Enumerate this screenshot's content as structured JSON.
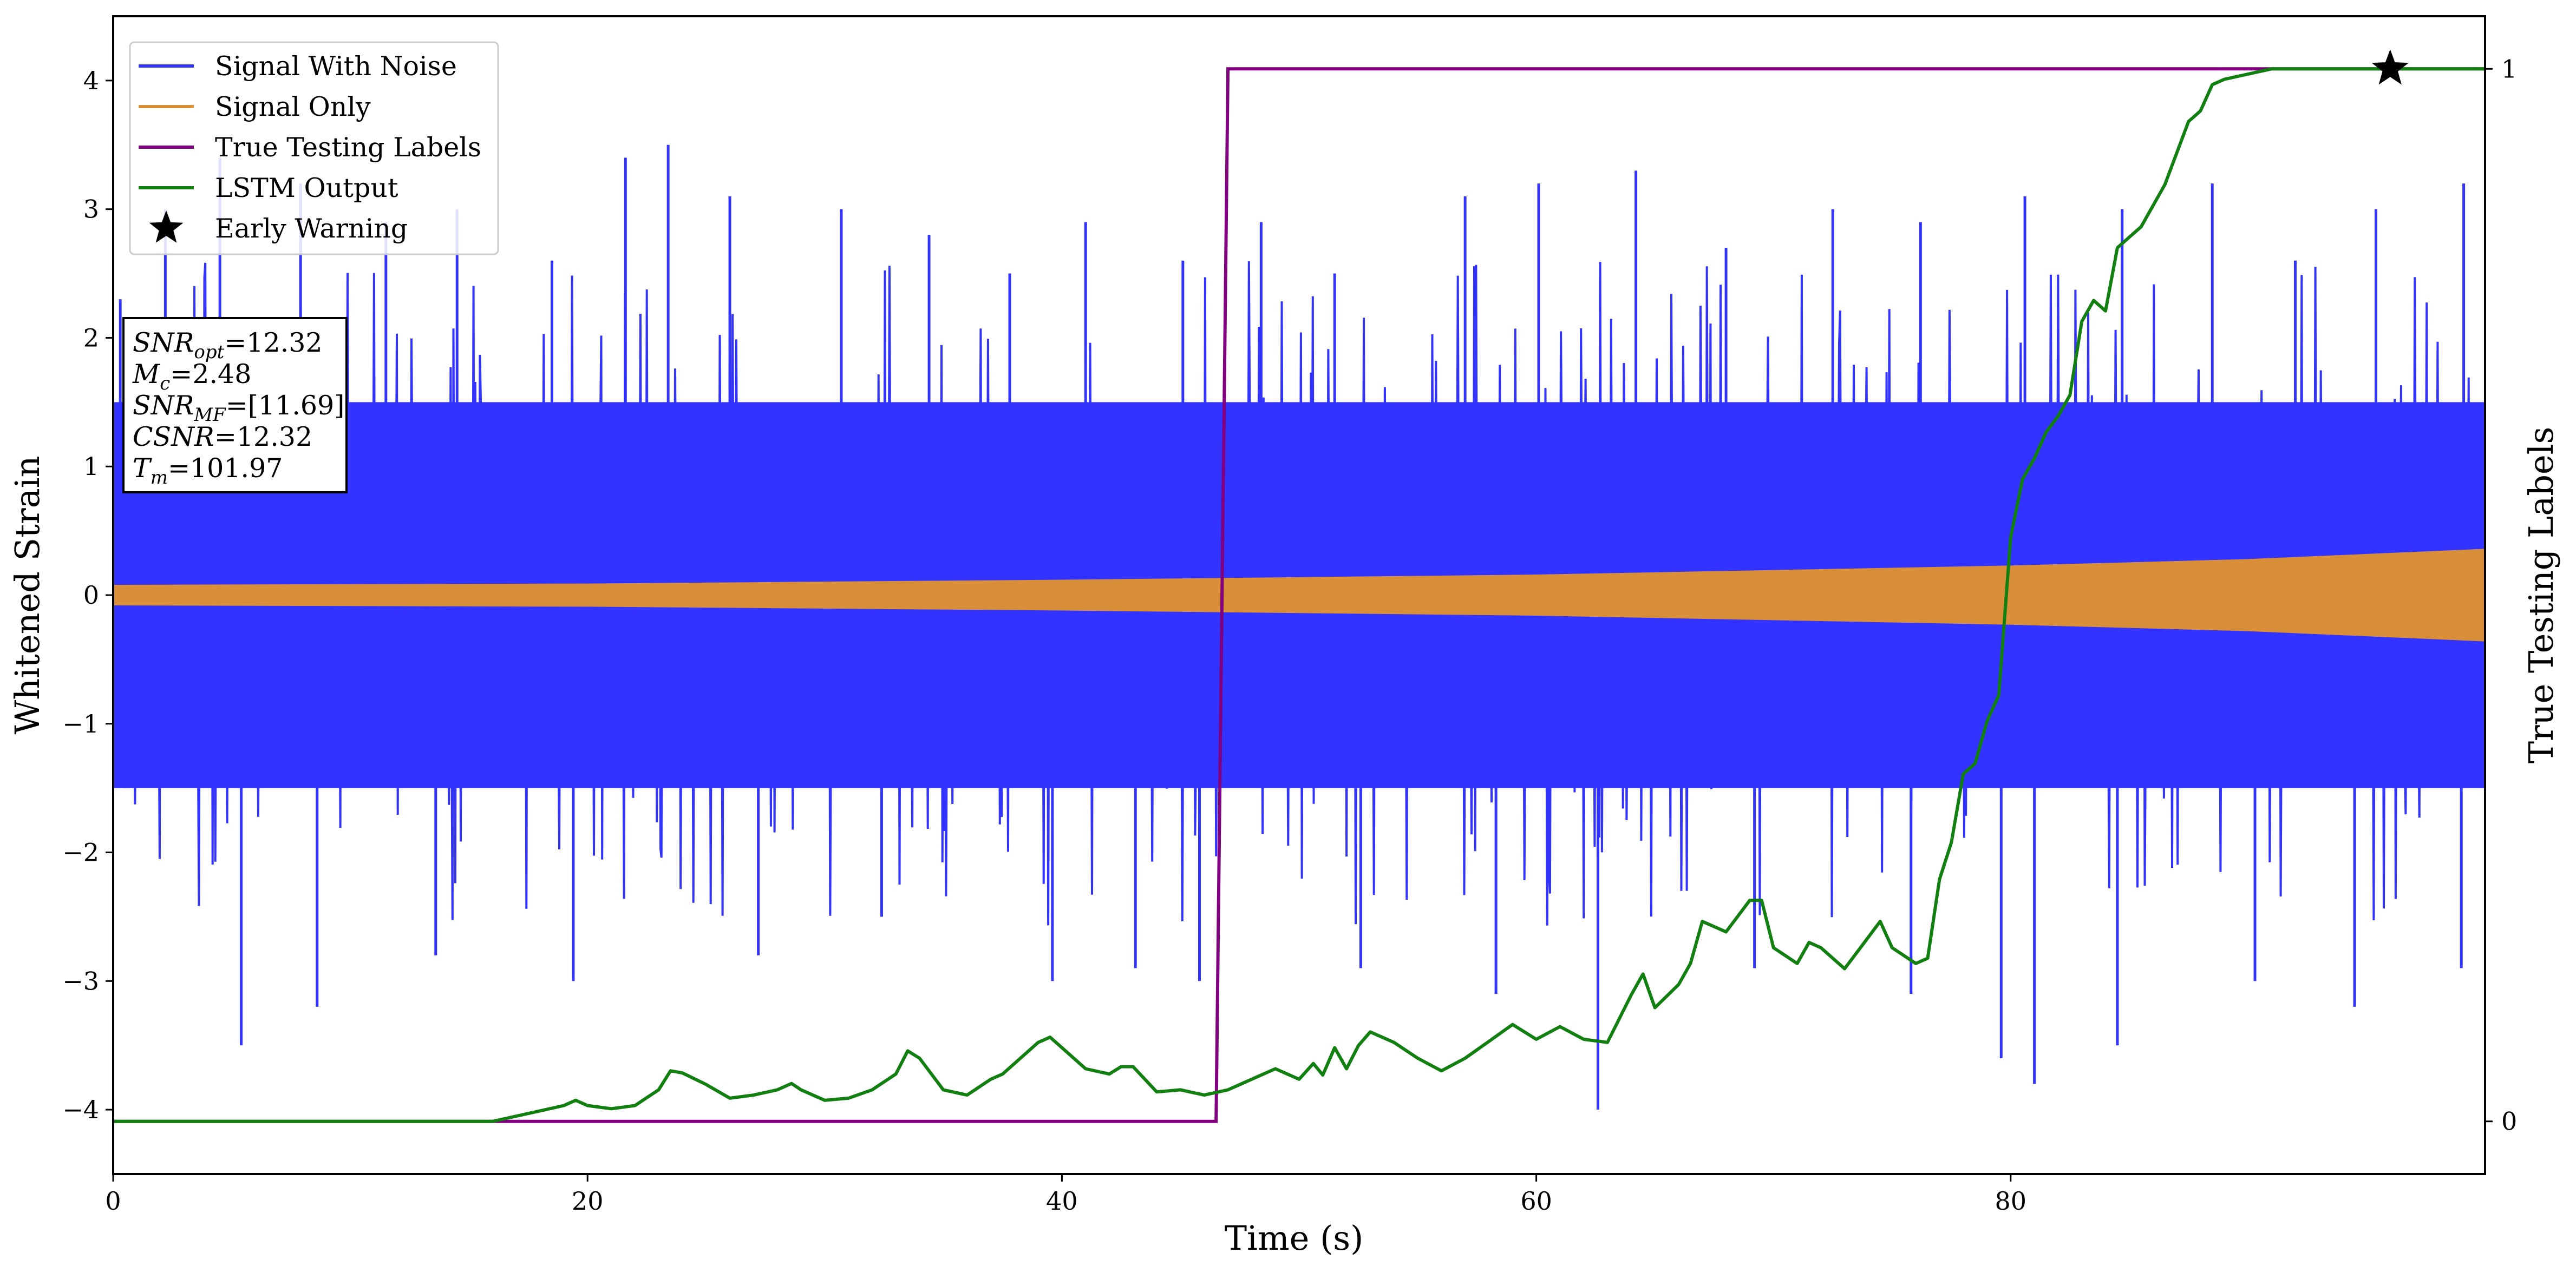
{
  "chart_data": {
    "type": "line",
    "xlabel": "Time (s)",
    "ylabel": "Whitened Strain",
    "y2label": "True Testing Labels",
    "xlim": [
      0,
      100
    ],
    "ylim": [
      -4.5,
      4.5
    ],
    "y2lim": [
      -0.05,
      1.05
    ],
    "xticks": [
      0,
      20,
      40,
      60,
      80
    ],
    "yticks": [
      -4,
      -3,
      -2,
      -1,
      0,
      1,
      2,
      3,
      4
    ],
    "y2ticks": [
      0,
      1
    ],
    "grid": false,
    "legend_position": "top-left",
    "series": [
      {
        "name": "Signal With Noise",
        "color": "#3333ff",
        "axis": "left",
        "description_range": [
          -4.1,
          4.1
        ],
        "envelope_typical": [
          -1.5,
          1.5
        ],
        "spikes_high": [
          [
            0.3,
            2.3
          ],
          [
            2.2,
            3.0
          ],
          [
            4.5,
            3.4
          ],
          [
            7.9,
            3.2
          ],
          [
            11.5,
            2.9
          ],
          [
            14.5,
            3.0
          ],
          [
            18.5,
            2.6
          ],
          [
            21.6,
            3.4
          ],
          [
            23.4,
            3.5
          ],
          [
            26.0,
            3.1
          ],
          [
            30.7,
            3.0
          ],
          [
            34.4,
            2.8
          ],
          [
            37.8,
            2.5
          ],
          [
            41.0,
            2.9
          ],
          [
            45.1,
            2.6
          ],
          [
            48.4,
            2.9
          ],
          [
            51.5,
            2.5
          ],
          [
            57.0,
            3.1
          ],
          [
            60.1,
            3.2
          ],
          [
            64.2,
            3.3
          ],
          [
            68.0,
            2.7
          ],
          [
            72.5,
            3.0
          ],
          [
            76.2,
            2.9
          ],
          [
            80.6,
            3.1
          ],
          [
            84.7,
            3.0
          ],
          [
            88.5,
            3.2
          ],
          [
            92.0,
            2.6
          ],
          [
            95.4,
            3.0
          ],
          [
            99.1,
            3.2
          ]
        ],
        "spikes_low": [
          [
            0.5,
            -1.5
          ],
          [
            5.4,
            -3.5
          ],
          [
            8.6,
            -3.2
          ],
          [
            13.6,
            -2.8
          ],
          [
            19.4,
            -3.0
          ],
          [
            27.2,
            -2.8
          ],
          [
            32.4,
            -2.5
          ],
          [
            39.6,
            -3.0
          ],
          [
            43.1,
            -2.9
          ],
          [
            45.8,
            -3.0
          ],
          [
            52.6,
            -2.9
          ],
          [
            58.3,
            -3.1
          ],
          [
            62.6,
            -4.0
          ],
          [
            69.2,
            -2.9
          ],
          [
            75.8,
            -3.1
          ],
          [
            79.6,
            -3.6
          ],
          [
            81.0,
            -3.8
          ],
          [
            84.5,
            -3.5
          ],
          [
            90.3,
            -3.0
          ],
          [
            94.5,
            -3.2
          ],
          [
            99.0,
            -2.9
          ]
        ]
      },
      {
        "name": "Signal Only",
        "color": "#d98e3a",
        "axis": "left",
        "amplitude_envelope": [
          [
            0,
            0.08
          ],
          [
            20,
            0.09
          ],
          [
            40,
            0.12
          ],
          [
            60,
            0.16
          ],
          [
            80,
            0.23
          ],
          [
            90,
            0.28
          ],
          [
            100,
            0.36
          ]
        ]
      },
      {
        "name": "True Testing Labels",
        "color": "#800080",
        "axis": "right",
        "x": [
          0,
          46.5,
          47.0,
          100
        ],
        "y": [
          0,
          0,
          1,
          1
        ]
      },
      {
        "name": "LSTM Output",
        "color": "#118011",
        "axis": "right",
        "x": [
          0,
          16.0,
          17.0,
          18.0,
          19.0,
          19.5,
          20.0,
          21.0,
          22.0,
          23.0,
          23.5,
          24.0,
          25.0,
          26.0,
          27.0,
          28.0,
          28.6,
          29.0,
          30.0,
          31.0,
          32.0,
          33.0,
          33.5,
          34.0,
          35.0,
          36.0,
          37.0,
          37.5,
          38.0,
          38.5,
          39.0,
          39.5,
          40.0,
          41.0,
          42.0,
          42.5,
          43.0,
          44.0,
          45.0,
          46.0,
          47.0,
          48.0,
          49.0,
          50.0,
          50.6,
          51.0,
          51.5,
          52.0,
          52.5,
          53.0,
          54.0,
          55.0,
          56.0,
          57.0,
          58.0,
          59.0,
          60.0,
          61.0,
          62.0,
          63.0,
          64.0,
          64.5,
          65.0,
          66.0,
          66.5,
          67.0,
          68.0,
          69.0,
          69.5,
          70.0,
          71.0,
          71.5,
          72.0,
          73.0,
          74.0,
          74.5,
          75.0,
          76.0,
          76.5,
          77.0,
          77.5,
          78.0,
          78.5,
          79.0,
          79.5,
          80.0,
          80.5,
          81.0,
          81.5,
          82.0,
          82.5,
          83.0,
          83.5,
          84.0,
          84.5,
          85.0,
          85.5,
          86.0,
          86.5,
          87.0,
          87.5,
          88.0,
          88.5,
          89.0,
          90.0,
          91.0,
          92.0,
          93.0,
          94.0,
          95.0,
          96.0,
          97.0,
          98.0,
          99.0,
          100.0
        ],
        "y": [
          0,
          0,
          0.005,
          0.01,
          0.015,
          0.02,
          0.015,
          0.012,
          0.015,
          0.03,
          0.048,
          0.046,
          0.035,
          0.022,
          0.025,
          0.03,
          0.036,
          0.03,
          0.02,
          0.022,
          0.03,
          0.045,
          0.067,
          0.06,
          0.03,
          0.025,
          0.04,
          0.045,
          0.055,
          0.065,
          0.075,
          0.08,
          0.07,
          0.05,
          0.045,
          0.052,
          0.052,
          0.028,
          0.03,
          0.025,
          0.03,
          0.04,
          0.05,
          0.04,
          0.055,
          0.044,
          0.07,
          0.05,
          0.072,
          0.085,
          0.075,
          0.06,
          0.048,
          0.06,
          0.076,
          0.092,
          0.078,
          0.09,
          0.078,
          0.075,
          0.12,
          0.14,
          0.108,
          0.13,
          0.15,
          0.19,
          0.18,
          0.21,
          0.21,
          0.165,
          0.15,
          0.17,
          0.165,
          0.145,
          0.175,
          0.19,
          0.165,
          0.15,
          0.155,
          0.23,
          0.265,
          0.33,
          0.34,
          0.38,
          0.405,
          0.555,
          0.61,
          0.63,
          0.655,
          0.67,
          0.69,
          0.76,
          0.78,
          0.77,
          0.83,
          0.84,
          0.85,
          0.87,
          0.89,
          0.92,
          0.95,
          0.96,
          0.985,
          0.99,
          0.995,
          1.0,
          1.0,
          1.0,
          1.0,
          1.0,
          1.0,
          1.0,
          1.0,
          1.0,
          1.0
        ]
      },
      {
        "name": "Early Warning",
        "color": "#000000",
        "axis": "right",
        "marker": "star",
        "x": [
          96.0
        ],
        "y": [
          1.0
        ]
      }
    ],
    "info_box": [
      {
        "main": "SNR",
        "sub": "opt",
        "value": "=12.32"
      },
      {
        "main": "M",
        "sub": "c",
        "value": "=2.48"
      },
      {
        "main": "SNR",
        "sub": "MF",
        "value": "=[11.69]"
      },
      {
        "main": "CSNR",
        "sub": "",
        "value": "=12.32"
      },
      {
        "main": "T",
        "sub": "m",
        "value": "=101.97"
      }
    ]
  }
}
